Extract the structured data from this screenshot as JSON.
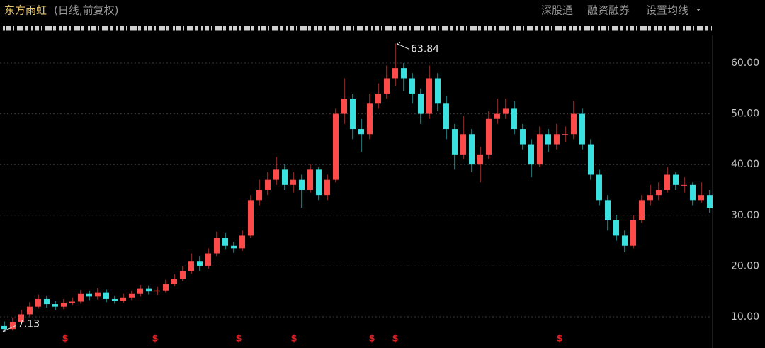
{
  "header": {
    "title": "东方雨虹",
    "subtitle": "(日线,前复权)",
    "links": [
      "深股通",
      "融资融券",
      "设置均线"
    ]
  },
  "chart_data": {
    "type": "candlestick",
    "open": [
      8.2,
      7.6,
      9,
      10.5,
      12,
      13.5,
      12.5,
      12,
      12.8,
      13,
      14.5,
      14,
      14.8,
      13.5,
      13.2,
      13.8,
      14.5,
      15.5,
      15,
      15.2,
      16.5,
      17.5,
      19,
      21,
      20,
      22.5,
      25.5,
      24,
      23.5,
      26,
      33,
      35,
      37,
      39,
      36,
      37,
      35,
      39,
      34,
      37,
      50,
      53,
      47,
      46,
      52,
      54,
      57,
      59,
      57,
      54,
      50,
      57,
      52,
      47,
      42,
      46,
      40,
      42,
      49,
      50,
      51,
      47,
      44,
      40,
      46,
      44,
      46,
      46,
      50,
      44,
      38,
      33,
      29,
      26,
      24,
      29,
      33,
      34,
      35,
      38,
      36,
      36,
      33,
      34
    ],
    "high": [
      9.1,
      9.9,
      11.4,
      12.9,
      14.4,
      14.2,
      13.2,
      13.5,
      13.8,
      15.3,
      15.2,
      15.6,
      15.4,
      14.2,
      14.5,
      15.2,
      16.3,
      16.2,
      15.9,
      17.3,
      18.4,
      20,
      22.5,
      22,
      23.5,
      26.8,
      26.5,
      24.8,
      27,
      34,
      37,
      38.5,
      41.5,
      40,
      38.5,
      38,
      40,
      39.5,
      38,
      51,
      57,
      54,
      49,
      54,
      56,
      59.5,
      63.84,
      60,
      58,
      55,
      59.5,
      58,
      53.5,
      48,
      49.5,
      47,
      43.5,
      50.5,
      53,
      53,
      52.5,
      48,
      45,
      47.5,
      47,
      48,
      47.5,
      52.5,
      51,
      45,
      39,
      34,
      30,
      27,
      30,
      34,
      36,
      36.5,
      39.5,
      38.5,
      37.5,
      36.5,
      36.5,
      35
    ],
    "low": [
      7.13,
      7.3,
      8.6,
      10.1,
      11.6,
      11.8,
      11.3,
      11.5,
      12.2,
      12.6,
      13.3,
      13.4,
      12.9,
      12.6,
      12.8,
      13.3,
      14.0,
      14.4,
      14.3,
      14.8,
      16.0,
      17,
      18.5,
      19,
      19.5,
      22,
      23.2,
      22.6,
      23,
      25.5,
      32,
      34,
      36,
      35,
      34.5,
      31.5,
      34.5,
      33,
      33,
      36.5,
      48,
      45,
      42.5,
      45,
      51,
      53,
      55.5,
      54.5,
      52,
      48,
      49,
      50.5,
      45,
      39,
      41,
      38.5,
      36.5,
      41,
      48,
      49,
      46,
      43,
      37.5,
      39.5,
      42.5,
      43,
      44.5,
      45,
      43,
      37,
      32,
      27,
      25,
      22.7,
      23.5,
      28.5,
      32,
      33,
      34.5,
      35,
      34.5,
      32,
      32.5,
      30.5
    ],
    "close": [
      7.6,
      9,
      10.5,
      12,
      13.5,
      12.5,
      12,
      12.8,
      13,
      14.5,
      14,
      14.8,
      13.5,
      13.2,
      13.8,
      14.5,
      15.5,
      15,
      15.2,
      16.5,
      17.5,
      19,
      21,
      20,
      22.5,
      25.5,
      24,
      23.5,
      26,
      33,
      35,
      37,
      39,
      36,
      37,
      35,
      39,
      34,
      37,
      50,
      53,
      47,
      46,
      52,
      54,
      57,
      59,
      57,
      54,
      50,
      57,
      52,
      47,
      42,
      46,
      40,
      42,
      49,
      50,
      51,
      47,
      44,
      40,
      46,
      44,
      46,
      46,
      50,
      44,
      38,
      33,
      29,
      26,
      24,
      29,
      33,
      34,
      35,
      38,
      36,
      36,
      33,
      34,
      31.5
    ],
    "up_color": "#ff4a4a",
    "down_color": "#39e1e1",
    "high_annotation": 63.84,
    "low_annotation": 7.13,
    "ylim": [
      7.5,
      65.5
    ],
    "yticks": [
      {
        "value": 10,
        "label": "10.00"
      },
      {
        "value": 20,
        "label": "20.00"
      },
      {
        "value": 30,
        "label": "30.00"
      },
      {
        "value": 40,
        "label": "40.00"
      },
      {
        "value": 50,
        "label": "50.00"
      },
      {
        "value": 60,
        "label": "60.00"
      }
    ],
    "grid": true
  }
}
